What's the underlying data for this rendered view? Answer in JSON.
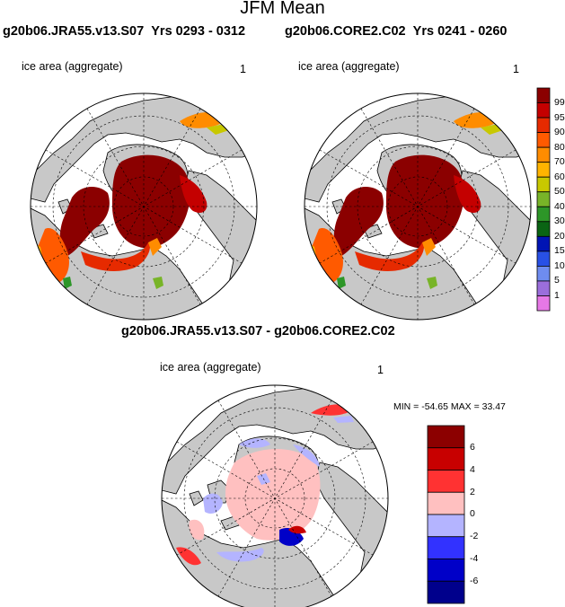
{
  "title": "JFM Mean",
  "panels": [
    {
      "run": "g20b06.JRA55.v13.S07",
      "years": "Yrs 0293 - 0312",
      "variable": "ice area  (aggregate)",
      "units": "1"
    },
    {
      "run": "g20b06.CORE2.C02",
      "years": "Yrs 0241 - 0260",
      "variable": "ice area  (aggregate)",
      "units": "1"
    }
  ],
  "diff_panel": {
    "title": "g20b06.JRA55.v13.S07 - g20b06.CORE2.C02",
    "variable": "ice area  (aggregate)",
    "units": "1",
    "minmax": "MIN = -54.65 MAX =  33.47"
  },
  "colorbar_main": {
    "labels": [
      "99",
      "95",
      "90",
      "80",
      "70",
      "60",
      "50",
      "40",
      "30",
      "20",
      "15",
      "10",
      "5",
      "1"
    ],
    "colors": [
      "#8b0000",
      "#c40000",
      "#e62a00",
      "#ff5a00",
      "#ff8c00",
      "#ffb400",
      "#c8c800",
      "#78b428",
      "#2d9628",
      "#0a6414",
      "#0014b4",
      "#2850e6",
      "#6e8cf0",
      "#9b6edc",
      "#e678e6"
    ]
  },
  "colorbar_diff": {
    "labels": [
      "6",
      "4",
      "2",
      "0",
      "-2",
      "-4",
      "-6"
    ],
    "colors": [
      "#8c0000",
      "#c80000",
      "#ff3232",
      "#ffc0c0",
      "#b4b4ff",
      "#3232ff",
      "#0000c8",
      "#00008c"
    ]
  },
  "map_colors": {
    "land": "#c8c8c8",
    "ocean": "#ffffff"
  }
}
